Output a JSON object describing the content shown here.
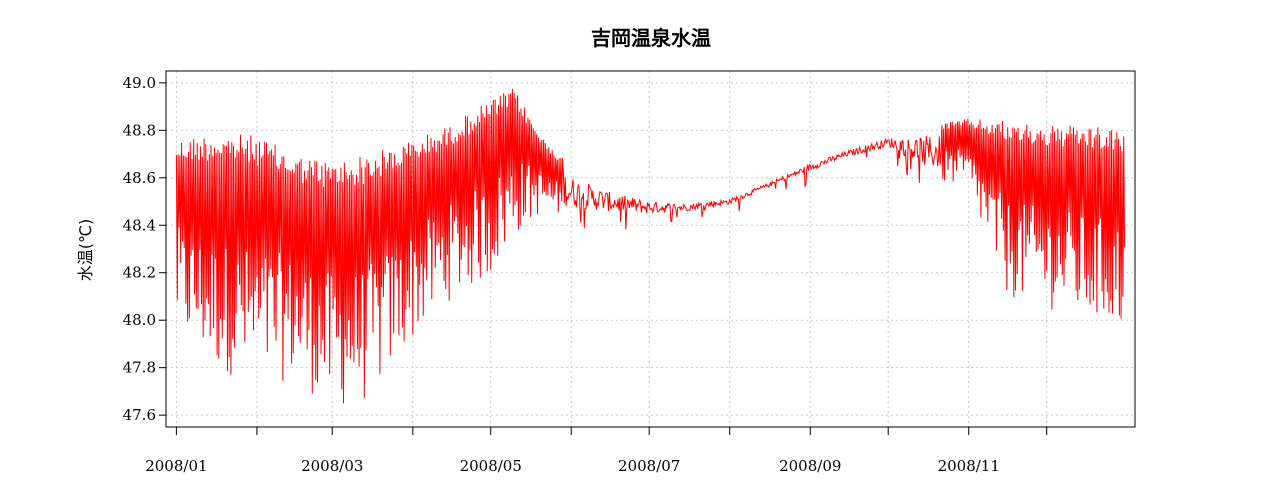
{
  "chart_data": {
    "type": "line",
    "title": "吉岡温泉水温",
    "xlabel": "",
    "ylabel": "水温(℃)",
    "ylim": [
      47.55,
      49.05
    ],
    "y_ticks": [
      47.6,
      47.8,
      48.0,
      48.2,
      48.4,
      48.6,
      48.8,
      49.0
    ],
    "y_tick_labels": [
      "47.6",
      "47.8",
      "48.0",
      "48.2",
      "48.4",
      "48.6",
      "48.8",
      "49.0"
    ],
    "x_range": [
      "2007-12-28",
      "2009-01-04"
    ],
    "x_major_ticks": [
      "2008-01-01",
      "2008-02-01",
      "2008-03-01",
      "2008-04-01",
      "2008-05-01",
      "2008-06-01",
      "2008-07-01",
      "2008-08-01",
      "2008-09-01",
      "2008-10-01",
      "2008-11-01",
      "2008-12-01"
    ],
    "x_tick_labels": [
      {
        "date": "2008-01-01",
        "label": "2008/01"
      },
      {
        "date": "2008-03-01",
        "label": "2008/03"
      },
      {
        "date": "2008-05-01",
        "label": "2008/05"
      },
      {
        "date": "2008-07-01",
        "label": "2008/07"
      },
      {
        "date": "2008-09-01",
        "label": "2008/09"
      },
      {
        "date": "2008-11-01",
        "label": "2008/11"
      }
    ],
    "grid": true,
    "line_color": "#ff0000",
    "series": [
      {
        "x": [
          "2008-01-01",
          "2008-01-15",
          "2008-02-01",
          "2008-02-15",
          "2008-03-01",
          "2008-03-15",
          "2008-04-01",
          "2008-04-15",
          "2008-05-01",
          "2008-05-10",
          "2008-05-20",
          "2008-06-01",
          "2008-06-15",
          "2008-07-01",
          "2008-07-15",
          "2008-08-01",
          "2008-08-15",
          "2008-09-01",
          "2008-09-15",
          "2008-10-01",
          "2008-10-15",
          "2008-11-01",
          "2008-11-15",
          "2008-12-01",
          "2008-12-15",
          "2008-12-31"
        ],
        "high": [
          48.76,
          48.79,
          48.78,
          48.7,
          48.67,
          48.7,
          48.76,
          48.82,
          48.93,
          48.98,
          48.78,
          48.65,
          48.57,
          48.52,
          48.5,
          48.52,
          48.58,
          48.67,
          48.72,
          48.78,
          48.82,
          48.85,
          48.84,
          48.82,
          48.82,
          48.8
        ],
        "low": [
          47.95,
          47.8,
          47.72,
          47.75,
          47.62,
          47.66,
          47.92,
          48.08,
          48.18,
          48.35,
          48.45,
          48.43,
          48.43,
          48.43,
          48.45,
          48.48,
          48.55,
          48.62,
          48.68,
          48.72,
          48.6,
          48.55,
          48.1,
          48.05,
          48.0,
          47.95
        ]
      }
    ]
  }
}
